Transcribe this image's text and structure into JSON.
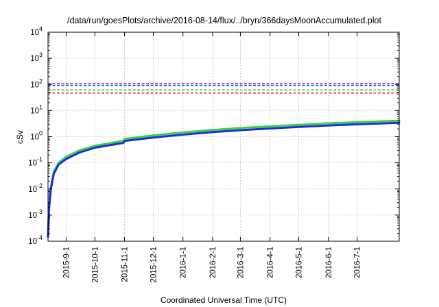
{
  "chart_data": {
    "type": "line",
    "title": "/data/run/goesPlots/archive/2016-08-14/flux/../bryn/366daysMoonAccumulated.plot",
    "xlabel": "Coordinated Universal Time (UTC)",
    "ylabel": "cSv",
    "y_scale": "log",
    "ylim_exp": [
      -4,
      4
    ],
    "xlim": [
      "2015-08-13",
      "2016-08-14"
    ],
    "x_ticks": [
      "2015-9-1",
      "2015-10-1",
      "2015-11-1",
      "2015-12-1",
      "2016-1-1",
      "2016-2-1",
      "2016-3-1",
      "2016-4-1",
      "2016-5-1",
      "2016-6-1",
      "2016-7-1"
    ],
    "grid": true,
    "reference_lines": [
      {
        "value": 110,
        "color": "#7b2fbe"
      },
      {
        "value": 92,
        "color": "#1f3fd6"
      },
      {
        "value": 62,
        "color": "#22bb22"
      },
      {
        "value": 47,
        "color": "#e02020"
      }
    ],
    "series": [
      {
        "color": "#3ecf3e",
        "x": [
          "2015-08-13",
          "2015-08-14",
          "2015-08-16",
          "2015-08-19",
          "2015-08-24",
          "2015-09-01",
          "2015-09-15",
          "2015-10-01",
          "2015-10-31",
          "2015-11-01",
          "2015-12-01",
          "2016-01-01",
          "2016-02-01",
          "2016-03-01",
          "2016-04-01",
          "2016-05-01",
          "2016-06-01",
          "2016-07-01",
          "2016-08-14"
        ],
        "y": [
          0.0002,
          0.002,
          0.012,
          0.045,
          0.1,
          0.17,
          0.3,
          0.45,
          0.7,
          0.83,
          1.12,
          1.45,
          1.8,
          2.15,
          2.5,
          2.85,
          3.25,
          3.6,
          4.1
        ]
      },
      {
        "color": "#1a2ee0",
        "x": [
          "2015-08-13",
          "2015-08-14",
          "2015-08-16",
          "2015-08-19",
          "2015-08-24",
          "2015-09-01",
          "2015-09-15",
          "2015-10-01",
          "2015-10-31",
          "2015-11-01",
          "2015-12-01",
          "2016-01-01",
          "2016-02-01",
          "2016-03-01",
          "2016-04-01",
          "2016-05-01",
          "2016-06-01",
          "2016-07-01",
          "2016-08-14"
        ],
        "y": [
          0.00015,
          0.0016,
          0.01,
          0.038,
          0.085,
          0.14,
          0.25,
          0.38,
          0.58,
          0.69,
          0.93,
          1.2,
          1.5,
          1.78,
          2.07,
          2.36,
          2.69,
          2.98,
          3.4
        ]
      }
    ]
  }
}
